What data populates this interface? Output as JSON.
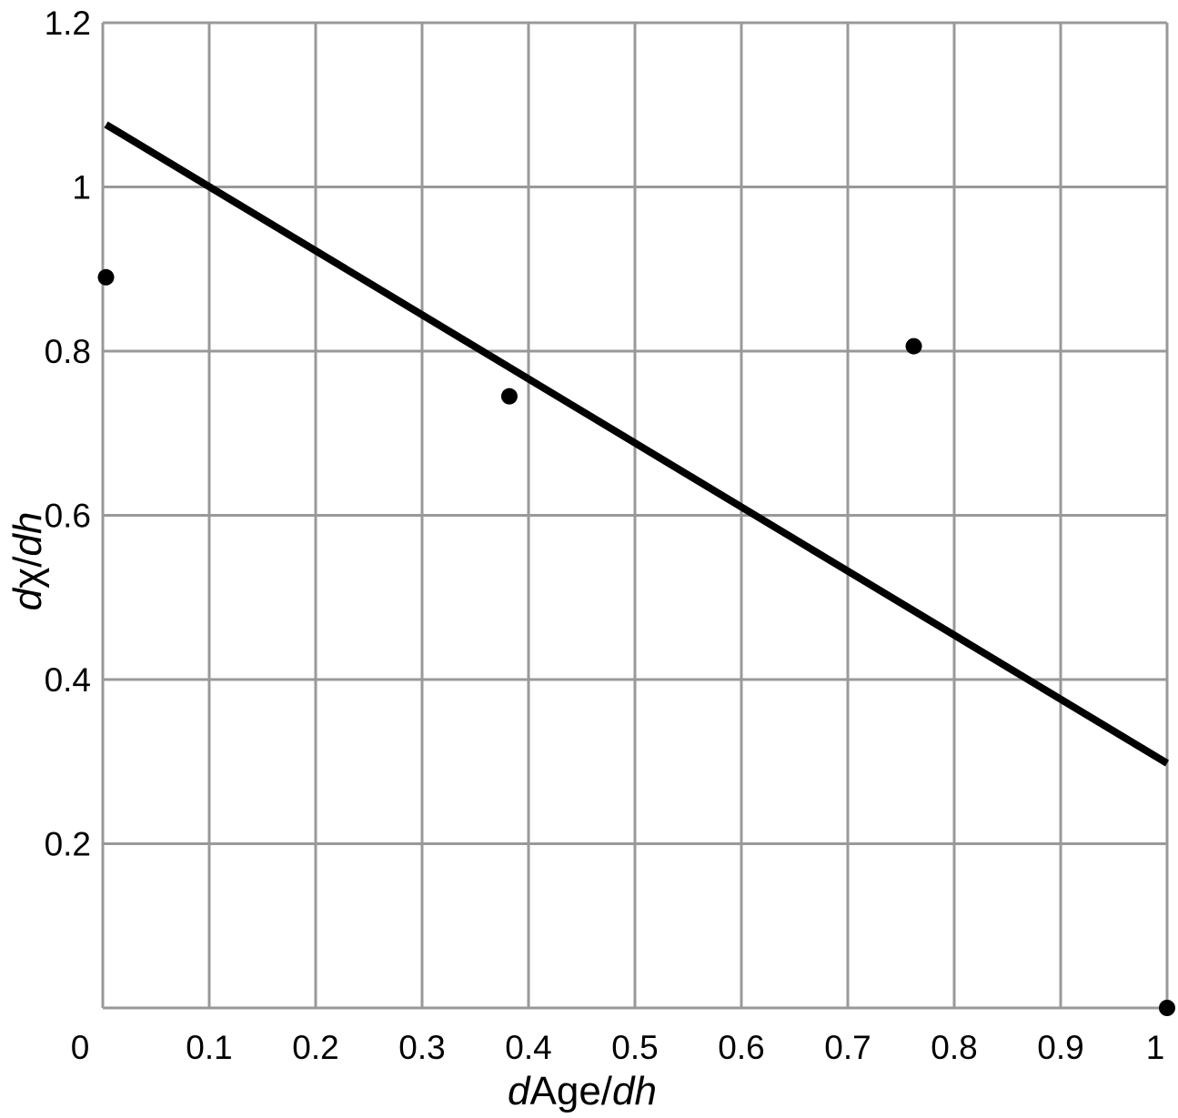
{
  "chart_data": {
    "type": "scatter",
    "title": "",
    "xlabel": {
      "prefix": "d",
      "main": "Age/",
      "suffix": "dh"
    },
    "ylabel": {
      "prefix": "d",
      "main": "χ/",
      "suffix": "dh"
    },
    "xlim": [
      0,
      1
    ],
    "ylim": [
      0,
      1.2
    ],
    "grid": true,
    "x_ticks": [
      {
        "value": 0,
        "label": "0"
      },
      {
        "value": 0.1,
        "label": "0.1"
      },
      {
        "value": 0.2,
        "label": "0.2"
      },
      {
        "value": 0.3,
        "label": "0.3"
      },
      {
        "value": 0.4,
        "label": "0.4"
      },
      {
        "value": 0.5,
        "label": "0.5"
      },
      {
        "value": 0.6,
        "label": "0.6"
      },
      {
        "value": 0.7,
        "label": "0.7"
      },
      {
        "value": 0.8,
        "label": "0.8"
      },
      {
        "value": 0.9,
        "label": "0.9"
      },
      {
        "value": 1,
        "label": "1"
      }
    ],
    "y_ticks": [
      {
        "value": 0.2,
        "label": "0.2"
      },
      {
        "value": 0.4,
        "label": "0.4"
      },
      {
        "value": 0.6,
        "label": "0.6"
      },
      {
        "value": 0.8,
        "label": "0.8"
      },
      {
        "value": 1,
        "label": "1"
      },
      {
        "value": 1.2,
        "label": "1.2"
      }
    ],
    "points": [
      {
        "x": 0.003,
        "y": 0.89
      },
      {
        "x": 0.382,
        "y": 0.745
      },
      {
        "x": 0.762,
        "y": 0.806
      },
      {
        "x": 1.0,
        "y": 0.0
      }
    ],
    "fit_line": {
      "x": [
        0.003,
        1.0
      ],
      "y": [
        1.076,
        0.298
      ]
    },
    "colors": {
      "grid": "#999999",
      "marks": "#000000",
      "background": "#ffffff"
    }
  }
}
